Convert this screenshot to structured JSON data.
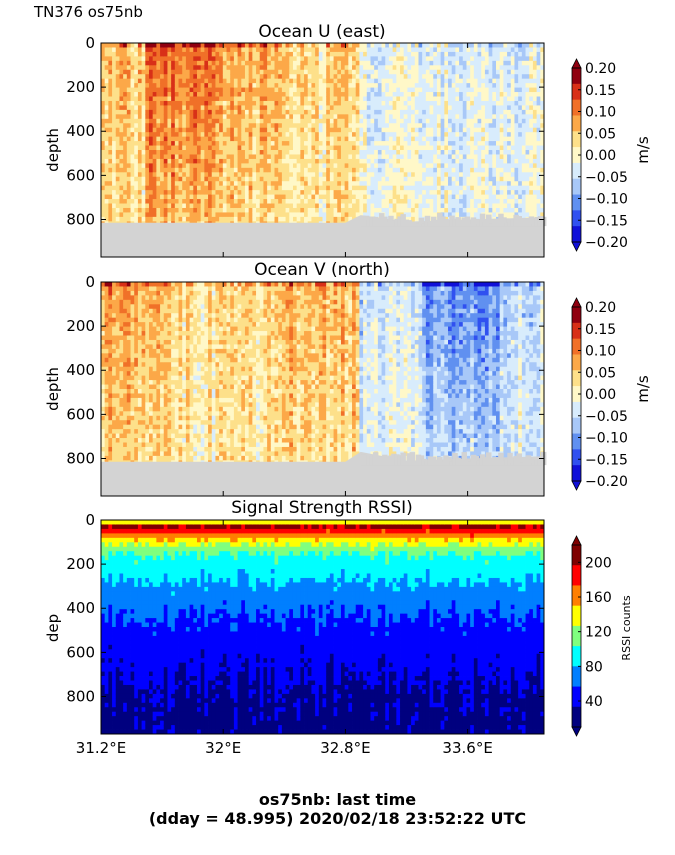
{
  "figure_label": "TN376 os75nb",
  "footer": {
    "line1": "os75nb: last time",
    "line2": "(dday = 48.995) 2020/02/18 23:52:22 UTC"
  },
  "colors": {
    "missing": "#d3d3d3",
    "diverging": [
      "#1010d8",
      "#3050f0",
      "#6090f0",
      "#a8c8f8",
      "#d8ecfc",
      "#fff8c8",
      "#fde08a",
      "#fca848",
      "#f07028",
      "#d83018",
      "#900010"
    ],
    "jet": [
      "#00007f",
      "#0000ff",
      "#007fff",
      "#00ffff",
      "#7fff7f",
      "#ffff00",
      "#ff7f00",
      "#ff0000",
      "#7f0000"
    ]
  },
  "chart_data": [
    {
      "type": "heatmap",
      "title": "Ocean U (east)",
      "ylabel": "depth",
      "x_ticks": [
        "31.2°E",
        "32°E",
        "32.8°E",
        "33.6°E"
      ],
      "y_ticks": [
        "0",
        "200",
        "400",
        "600",
        "800"
      ],
      "y_reversed": true,
      "xlim": [
        31.2,
        34.1
      ],
      "ylim": [
        970,
        0
      ],
      "colorbar": {
        "label": "m/s",
        "ticks": [
          "0.20",
          "0.15",
          "0.10",
          "0.05",
          "0.00",
          "−0.05",
          "−0.10",
          "−0.15",
          "−0.20"
        ],
        "extend": "both",
        "range": [
          -0.2,
          0.2
        ]
      },
      "field": {
        "lon_change": 32.9,
        "segments": [
          {
            "lon": [
              31.2,
              31.5
            ],
            "mean": 0.06
          },
          {
            "lon": [
              31.5,
              32.0
            ],
            "mean": 0.13
          },
          {
            "lon": [
              32.0,
              32.4
            ],
            "mean": 0.08
          },
          {
            "lon": [
              32.4,
              32.9
            ],
            "mean": 0.04
          },
          {
            "lon": [
              32.9,
              34.1
            ],
            "mean": -0.03
          }
        ]
      },
      "bottom_depth": [
        [
          31.2,
          815
        ],
        [
          32.2,
          815
        ],
        [
          32.8,
          815
        ],
        [
          32.9,
          780
        ],
        [
          33.2,
          810
        ],
        [
          33.6,
          800
        ],
        [
          34.1,
          790
        ]
      ]
    },
    {
      "type": "heatmap",
      "title": "Ocean V (north)",
      "ylabel": "depth",
      "x_ticks": [
        "31.2°E",
        "32°E",
        "32.8°E",
        "33.6°E"
      ],
      "y_ticks": [
        "0",
        "200",
        "400",
        "600",
        "800"
      ],
      "y_reversed": true,
      "xlim": [
        31.2,
        34.1
      ],
      "ylim": [
        970,
        0
      ],
      "colorbar": {
        "label": "m/s",
        "ticks": [
          "0.20",
          "0.15",
          "0.10",
          "0.05",
          "0.00",
          "−0.05",
          "−0.10",
          "−0.15",
          "−0.20"
        ],
        "extend": "both",
        "range": [
          -0.2,
          0.2
        ]
      },
      "field": {
        "lon_change": 32.9,
        "segments": [
          {
            "lon": [
              31.2,
              31.6
            ],
            "mean": 0.09
          },
          {
            "lon": [
              31.6,
              32.3
            ],
            "mean": 0.04
          },
          {
            "lon": [
              32.3,
              32.9
            ],
            "mean": 0.07
          },
          {
            "lon": [
              32.9,
              33.3
            ],
            "mean": -0.05
          },
          {
            "lon": [
              33.3,
              33.8
            ],
            "mean": -0.12
          },
          {
            "lon": [
              33.8,
              34.1
            ],
            "mean": -0.05
          }
        ]
      },
      "bottom_depth": [
        [
          31.2,
          815
        ],
        [
          32.2,
          815
        ],
        [
          32.8,
          815
        ],
        [
          32.9,
          770
        ],
        [
          33.2,
          810
        ],
        [
          33.6,
          800
        ],
        [
          34.1,
          790
        ]
      ]
    },
    {
      "type": "heatmap",
      "title": "Signal Strength RSSI)",
      "ylabel": "dep",
      "x_ticks": [
        "31.2°E",
        "32°E",
        "32.8°E",
        "33.6°E"
      ],
      "y_ticks": [
        "0",
        "200",
        "400",
        "600",
        "800"
      ],
      "y_reversed": true,
      "xlim": [
        31.2,
        34.1
      ],
      "ylim": [
        970,
        0
      ],
      "colorbar": {
        "label": "RSSI counts",
        "ticks": [
          "200",
          "160",
          "120",
          "80",
          "40"
        ],
        "extend": "both",
        "range": [
          10,
          220
        ]
      },
      "profile": [
        [
          30,
          200
        ],
        [
          60,
          175
        ],
        [
          100,
          135
        ],
        [
          160,
          100
        ],
        [
          250,
          85
        ],
        [
          320,
          72
        ],
        [
          420,
          58
        ],
        [
          520,
          48
        ],
        [
          650,
          38
        ],
        [
          800,
          30
        ],
        [
          970,
          26
        ]
      ]
    }
  ]
}
